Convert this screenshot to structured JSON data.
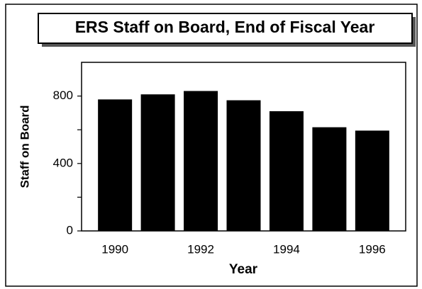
{
  "chart_data": {
    "type": "bar",
    "title": "ERS Staff on Board, End of Fiscal Year",
    "categories": [
      "1990",
      null,
      "1992",
      null,
      "1994",
      null,
      "1996"
    ],
    "values": [
      780,
      810,
      830,
      775,
      710,
      615,
      595
    ],
    "color": "#000000",
    "xlabel": "Year",
    "ylabel": "Staff on Board",
    "ylim": [
      0,
      1000
    ],
    "yticks": [
      0,
      400,
      800
    ],
    "yminorticks": [
      200,
      600
    ],
    "grid": false
  }
}
